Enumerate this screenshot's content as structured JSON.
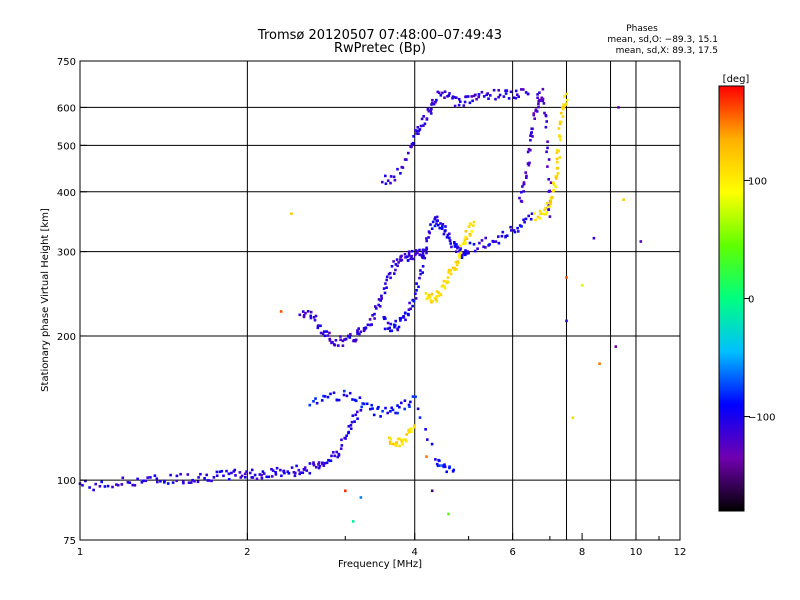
{
  "header": {
    "title_line1": "Tromsø 20120507 07:48:00–07:49:43",
    "title_line2": "RwPretec (Bp)",
    "phases_title": "Phases",
    "phases_o": "mean, sd,O: −89.3, 15.1",
    "phases_x": "mean, sd,X: 89.3, 17.5"
  },
  "colorbar": {
    "unit": "[deg]",
    "min": -180,
    "max": 180,
    "ticks": [
      {
        "value": 100,
        "label": "100"
      },
      {
        "value": 0,
        "label": "0"
      },
      {
        "value": -100,
        "label": "−100"
      }
    ],
    "stops": [
      "#000000",
      "#7000b0",
      "#0000ff",
      "#00c0ff",
      "#00ff80",
      "#60ff00",
      "#ffff00",
      "#ffb000",
      "#ff0000"
    ]
  },
  "chart_data": {
    "type": "scatter",
    "title": "Tromsø 20120507 07:48:00–07:49:43",
    "subtitle": "RwPretec (Bp)",
    "xlabel": "Frequency [MHz]",
    "ylabel": "Stationary phase Virtual Height [km]",
    "xscale": "log",
    "yscale": "log",
    "xlim": [
      1,
      12
    ],
    "ylim": [
      75,
      750
    ],
    "grid": true,
    "xticks": [
      {
        "value": 1,
        "label": "1"
      },
      {
        "value": 2,
        "label": "2"
      },
      {
        "value": 4,
        "label": "4"
      },
      {
        "value": 6,
        "label": "6"
      },
      {
        "value": 8,
        "label": "8"
      },
      {
        "value": 10,
        "label": "10"
      },
      {
        "value": 12,
        "label": "12"
      }
    ],
    "xminor": [
      3,
      5,
      7,
      9,
      11
    ],
    "xgrid": [
      2,
      4,
      6,
      7.5,
      9,
      10
    ],
    "yticks": [
      {
        "value": 75,
        "label": "75"
      },
      {
        "value": 100,
        "label": "100"
      },
      {
        "value": 200,
        "label": "200"
      },
      {
        "value": 300,
        "label": "300"
      },
      {
        "value": 400,
        "label": "400"
      },
      {
        "value": 500,
        "label": "500"
      },
      {
        "value": 600,
        "label": "600"
      },
      {
        "value": 750,
        "label": "750"
      }
    ],
    "ygrid": [
      100,
      200,
      300,
      400,
      500,
      600
    ],
    "traces": [
      {
        "name": "",
        "phase": -105,
        "points": [
          [
            1.0,
            98
          ],
          [
            1.1,
            97
          ],
          [
            1.2,
            99
          ],
          [
            1.3,
            100
          ],
          [
            1.4,
            100
          ],
          [
            1.5,
            101
          ],
          [
            1.6,
            101
          ],
          [
            1.7,
            102
          ],
          [
            1.8,
            102
          ],
          [
            1.9,
            103
          ],
          [
            2.0,
            103
          ],
          [
            2.1,
            103
          ],
          [
            2.2,
            103
          ],
          [
            2.3,
            104
          ],
          [
            2.4,
            104
          ],
          [
            2.5,
            105
          ],
          [
            2.6,
            106
          ],
          [
            2.7,
            108
          ],
          [
            2.8,
            110
          ],
          [
            2.9,
            114
          ],
          [
            3.0,
            122
          ],
          [
            3.1,
            132
          ],
          [
            3.2,
            140
          ]
        ]
      },
      {
        "name": "",
        "phase": -110,
        "points": [
          [
            2.5,
            225
          ],
          [
            2.6,
            222
          ],
          [
            2.7,
            208
          ],
          [
            2.8,
            198
          ],
          [
            2.9,
            195
          ],
          [
            3.0,
            195
          ],
          [
            3.1,
            198
          ],
          [
            3.2,
            205
          ],
          [
            3.3,
            212
          ],
          [
            3.4,
            225
          ],
          [
            3.5,
            245
          ],
          [
            3.6,
            265
          ],
          [
            3.7,
            285
          ],
          [
            3.8,
            292
          ],
          [
            3.9,
            294
          ],
          [
            4.0,
            295
          ],
          [
            4.1,
            296
          ],
          [
            4.2,
            298
          ]
        ]
      },
      {
        "name": "",
        "phase": -100,
        "points": [
          [
            3.5,
            215
          ],
          [
            3.6,
            210
          ],
          [
            3.7,
            210
          ],
          [
            3.8,
            215
          ],
          [
            3.9,
            225
          ],
          [
            4.0,
            240
          ],
          [
            4.1,
            270
          ],
          [
            4.2,
            310
          ],
          [
            4.3,
            340
          ],
          [
            4.4,
            350
          ],
          [
            4.5,
            335
          ],
          [
            4.6,
            320
          ],
          [
            4.7,
            310
          ],
          [
            4.8,
            300
          ],
          [
            4.9,
            298
          ],
          [
            5.0,
            305
          ],
          [
            5.3,
            312
          ],
          [
            5.6,
            318
          ],
          [
            5.9,
            325
          ],
          [
            6.2,
            340
          ],
          [
            6.5,
            360
          ]
        ]
      },
      {
        "name": "",
        "phase": -110,
        "points": [
          [
            3.5,
            420
          ],
          [
            3.7,
            430
          ],
          [
            3.9,
            480
          ],
          [
            4.0,
            520
          ],
          [
            4.1,
            550
          ],
          [
            4.2,
            580
          ],
          [
            4.3,
            610
          ],
          [
            4.4,
            635
          ],
          [
            4.6,
            630
          ],
          [
            4.8,
            615
          ],
          [
            5.0,
            625
          ],
          [
            5.2,
            635
          ],
          [
            5.5,
            640
          ],
          [
            5.8,
            638
          ],
          [
            6.1,
            640
          ],
          [
            6.4,
            640
          ]
        ]
      },
      {
        "name": "",
        "phase": -120,
        "points": [
          [
            6.2,
            380
          ],
          [
            6.3,
            420
          ],
          [
            6.4,
            470
          ],
          [
            6.5,
            530
          ],
          [
            6.6,
            590
          ],
          [
            6.7,
            630
          ],
          [
            6.8,
            640
          ],
          [
            6.9,
            540
          ],
          [
            7.0,
            420
          ],
          [
            7.0,
            355
          ]
        ]
      },
      {
        "name": "",
        "phase": 110,
        "points": [
          [
            4.2,
            240
          ],
          [
            4.3,
            238
          ],
          [
            4.4,
            245
          ],
          [
            4.5,
            255
          ],
          [
            4.6,
            265
          ],
          [
            4.7,
            275
          ],
          [
            4.8,
            290
          ],
          [
            4.9,
            310
          ],
          [
            5.0,
            330
          ],
          [
            5.1,
            340
          ]
        ]
      },
      {
        "name": "",
        "phase": 110,
        "points": [
          [
            6.6,
            355
          ],
          [
            6.8,
            362
          ],
          [
            7.0,
            375
          ],
          [
            7.1,
            395
          ],
          [
            7.2,
            430
          ],
          [
            7.25,
            480
          ],
          [
            7.3,
            540
          ],
          [
            7.4,
            600
          ],
          [
            7.5,
            640
          ]
        ]
      },
      {
        "name": "",
        "phase": 110,
        "points": [
          [
            3.6,
            120
          ],
          [
            3.7,
            118
          ],
          [
            3.8,
            120
          ],
          [
            3.9,
            125
          ],
          [
            4.0,
            130
          ]
        ]
      },
      {
        "name": "",
        "phase": -90,
        "points": [
          [
            2.6,
            145
          ],
          [
            2.8,
            148
          ],
          [
            3.0,
            150
          ],
          [
            3.2,
            145
          ],
          [
            3.4,
            140
          ],
          [
            3.6,
            138
          ],
          [
            3.8,
            142
          ],
          [
            4.0,
            148
          ],
          [
            4.4,
            108
          ],
          [
            4.5,
            108
          ],
          [
            4.7,
            105
          ]
        ]
      }
    ],
    "scattered_points": [
      {
        "x": 2.4,
        "y": 360,
        "phase": 120
      },
      {
        "x": 2.3,
        "y": 225,
        "phase": 160
      },
      {
        "x": 3.0,
        "y": 95,
        "phase": 170
      },
      {
        "x": 3.2,
        "y": 92,
        "phase": -60
      },
      {
        "x": 4.3,
        "y": 95,
        "phase": -150
      },
      {
        "x": 4.2,
        "y": 112,
        "phase": 150
      },
      {
        "x": 7.5,
        "y": 265,
        "phase": 160
      },
      {
        "x": 8.0,
        "y": 255,
        "phase": 80
      },
      {
        "x": 8.6,
        "y": 175,
        "phase": 150
      },
      {
        "x": 9.2,
        "y": 190,
        "phase": -140
      },
      {
        "x": 9.5,
        "y": 385,
        "phase": 120
      },
      {
        "x": 10.2,
        "y": 315,
        "phase": -120
      },
      {
        "x": 8.4,
        "y": 320,
        "phase": -110
      },
      {
        "x": 9.3,
        "y": 600,
        "phase": -130
      },
      {
        "x": 7.7,
        "y": 135,
        "phase": 110
      },
      {
        "x": 7.5,
        "y": 215,
        "phase": -110
      },
      {
        "x": 4.6,
        "y": 85,
        "phase": 40
      },
      {
        "x": 3.1,
        "y": 82,
        "phase": -10
      }
    ]
  }
}
